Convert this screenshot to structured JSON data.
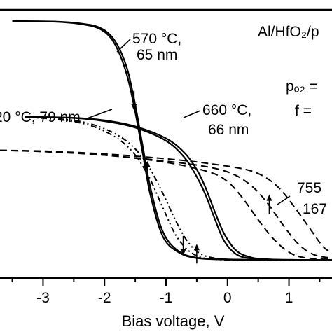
{
  "chart_data": {
    "type": "line",
    "title": "",
    "xlabel": "Bias voltage, V",
    "ylabel": "",
    "xlim": [
      -3.7,
      1.7
    ],
    "ylim": [
      0,
      1.05
    ],
    "x_ticks": [
      -3,
      -2,
      -1,
      0,
      1
    ],
    "x_tick_labels": [
      "-3",
      "-2",
      "-1",
      "0",
      "1"
    ],
    "grid": false,
    "annotations": [
      {
        "text": "570 °C,"
      },
      {
        "text": "65 nm"
      },
      {
        "text": "660 °C,"
      },
      {
        "text": "66 nm"
      },
      {
        "text": "20 °C, 79 nm"
      },
      {
        "text": "755"
      },
      {
        "text": "167"
      },
      {
        "text": "Al/HfO₂/p"
      },
      {
        "text": "pₒ₂ ="
      },
      {
        "text": "f ="
      }
    ],
    "series": [
      {
        "style": "solid",
        "sweeps": [
          {
            "x": [
              -3.5,
              -2.8,
              -2.4,
              -2.1,
              -1.9,
              -1.75,
              -1.62,
              -1.5,
              -1.38,
              -1.25,
              -1.05,
              -0.8,
              -0.5,
              0.0,
              1.0,
              1.7
            ],
            "y": [
              1.0,
              0.998,
              0.99,
              0.975,
              0.94,
              0.88,
              0.79,
              0.65,
              0.48,
              0.3,
              0.12,
              0.04,
              0.012,
              0.005,
              0.002,
              0.002
            ]
          },
          {
            "x": [
              -3.5,
              -2.8,
              -2.4,
              -2.1,
              -1.9,
              -1.75,
              -1.62,
              -1.5,
              -1.38,
              -1.25,
              -1.05,
              -0.8,
              -0.5,
              0.0,
              1.0,
              1.7
            ],
            "y": [
              1.0,
              0.997,
              0.988,
              0.97,
              0.93,
              0.86,
              0.76,
              0.62,
              0.45,
              0.27,
              0.1,
              0.035,
              0.01,
              0.004,
              0.002,
              0.002
            ]
          }
        ]
      },
      {
        "style": "solid",
        "sweeps": [
          {
            "x": [
              -3.3,
              -2.5,
              -2.0,
              -1.5,
              -1.0,
              -0.7,
              -0.5,
              -0.35,
              -0.2,
              -0.05,
              0.15,
              0.4,
              0.7,
              1.0,
              1.7
            ],
            "y": [
              0.6,
              0.596,
              0.585,
              0.56,
              0.51,
              0.45,
              0.38,
              0.3,
              0.2,
              0.11,
              0.04,
              0.012,
              0.005,
              0.003,
              0.002
            ]
          },
          {
            "x": [
              -3.3,
              -2.5,
              -2.0,
              -1.5,
              -1.0,
              -0.7,
              -0.5,
              -0.35,
              -0.2,
              -0.05,
              0.15,
              0.4,
              0.7,
              1.0,
              1.7
            ],
            "y": [
              0.6,
              0.595,
              0.582,
              0.555,
              0.5,
              0.43,
              0.35,
              0.27,
              0.17,
              0.08,
              0.025,
              0.008,
              0.004,
              0.003,
              0.002
            ]
          }
        ]
      },
      {
        "style": "dash-dot-dot",
        "sweeps": [
          {
            "x": [
              -3.3,
              -2.5,
              -2.0,
              -1.6,
              -1.3,
              -1.05,
              -0.85,
              -0.65,
              -0.45,
              -0.2,
              0.2,
              1.0,
              1.7
            ],
            "y": [
              0.6,
              0.58,
              0.54,
              0.47,
              0.36,
              0.22,
              0.11,
              0.045,
              0.015,
              0.005,
              0.002,
              0.001,
              0.001
            ]
          },
          {
            "x": [
              -3.3,
              -2.5,
              -2.0,
              -1.6,
              -1.3,
              -1.05,
              -0.85,
              -0.65,
              -0.45,
              -0.2,
              0.2,
              1.0,
              1.7
            ],
            "y": [
              0.6,
              0.585,
              0.55,
              0.49,
              0.4,
              0.28,
              0.17,
              0.08,
              0.03,
              0.01,
              0.003,
              0.001,
              0.001
            ]
          }
        ]
      },
      {
        "style": "dashed",
        "sweeps": [
          {
            "x": [
              -3.7,
              -3.0,
              -2.0,
              -1.0,
              -0.3,
              0.1,
              0.4,
              0.65,
              0.9,
              1.15,
              1.4,
              1.7
            ],
            "y": [
              0.46,
              0.455,
              0.44,
              0.415,
              0.39,
              0.36,
              0.31,
              0.24,
              0.15,
              0.07,
              0.025,
              0.01
            ]
          },
          {
            "x": [
              -3.7,
              -3.0,
              -2.0,
              -1.0,
              -0.3,
              0.0,
              0.25,
              0.5,
              0.75,
              1.0,
              1.25,
              1.7
            ],
            "y": [
              0.46,
              0.455,
              0.44,
              0.41,
              0.37,
              0.33,
              0.26,
              0.17,
              0.09,
              0.035,
              0.012,
              0.005
            ]
          },
          {
            "x": [
              -3.7,
              -3.0,
              -2.0,
              -1.0,
              -0.3,
              0.3,
              0.6,
              0.85,
              1.1,
              1.35,
              1.55,
              1.7
            ],
            "y": [
              0.46,
              0.457,
              0.445,
              0.425,
              0.405,
              0.38,
              0.35,
              0.3,
              0.22,
              0.13,
              0.06,
              0.03
            ]
          }
        ]
      }
    ],
    "arrows": [
      {
        "x": -1.52,
        "direction": "down"
      },
      {
        "x": -1.3,
        "direction": "up"
      },
      {
        "x": -0.72,
        "direction": "down"
      },
      {
        "x": -0.5,
        "direction": "up"
      },
      {
        "x": 0.68,
        "direction": "up"
      }
    ]
  }
}
